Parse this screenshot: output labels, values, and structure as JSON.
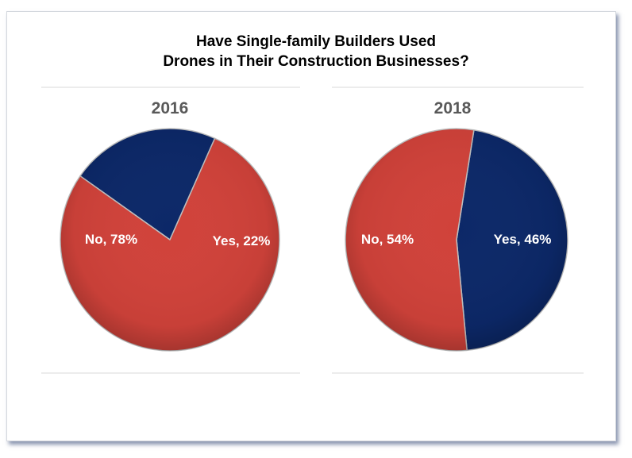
{
  "title": {
    "line1": "Have Single-family Builders Used",
    "line2": "Drones in Their Construction Businesses?"
  },
  "colors": {
    "no": "#d0423a",
    "yes": "#0c2868",
    "year_text": "#595959",
    "label_text": "#ffffff"
  },
  "chart_data": [
    {
      "type": "pie",
      "title": "2016",
      "slices": [
        {
          "label": "Yes",
          "value": 22,
          "display": "Yes, 22%"
        },
        {
          "label": "No",
          "value": 78,
          "display": "No, 78%"
        }
      ]
    },
    {
      "type": "pie",
      "title": "2018",
      "slices": [
        {
          "label": "Yes",
          "value": 46,
          "display": "Yes, 46%"
        },
        {
          "label": "No",
          "value": 54,
          "display": "No, 54%"
        }
      ]
    }
  ]
}
